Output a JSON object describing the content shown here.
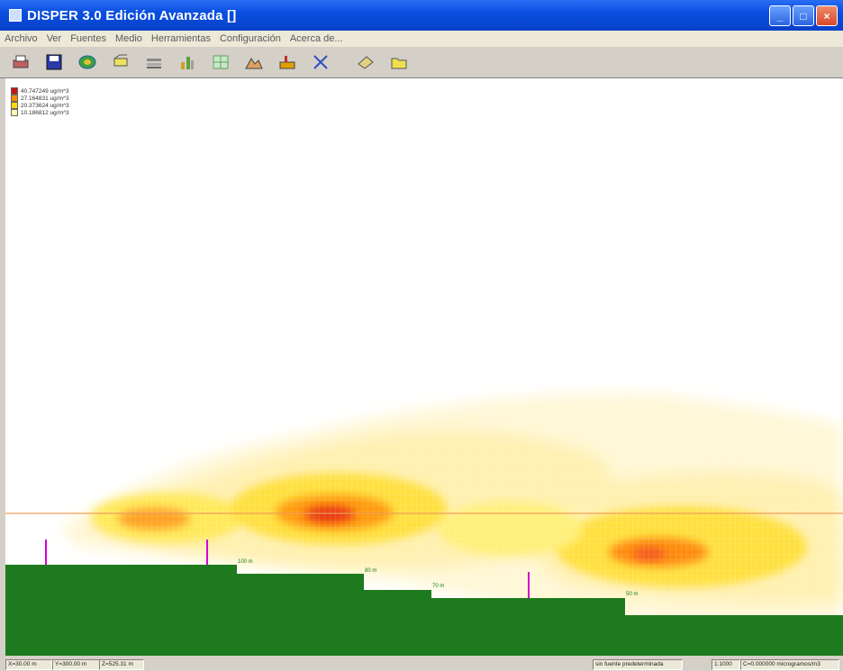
{
  "window": {
    "title": "DISPER 3.0 Edición Avanzada []",
    "controls": [
      "minimize",
      "maximize",
      "close"
    ]
  },
  "menu": {
    "items": [
      "Archivo",
      "Ver",
      "Fuentes",
      "Medio",
      "Herramientas",
      "Configuración",
      "Acerca de..."
    ]
  },
  "toolbar": {
    "icons": [
      "printer-icon",
      "save-disk-icon",
      "globe-icon",
      "stack-icon",
      "layers-icon",
      "chart-icon",
      "grid-icon",
      "terrain-icon",
      "factory-icon",
      "cross-icon",
      "pointer-icon",
      "folder-icon"
    ]
  },
  "legend": {
    "entries": [
      {
        "label": "40.747249 ug/m^3",
        "color": "#c81414"
      },
      {
        "label": "27.164831 ug/m^3",
        "color": "#ff8a00"
      },
      {
        "label": "20.373624 ug/m^3",
        "color": "#ffd800"
      },
      {
        "label": "10.186812 ug/m^3",
        "color": "#fff8b0"
      }
    ]
  },
  "terrain_labels": [
    "100 m",
    "80 m",
    "70 m",
    "50 m"
  ],
  "status": {
    "x": "X=30.00 m",
    "y": "Y=300.00 m",
    "z": "Z=525.31 m",
    "source": "sin fuente predeterminada",
    "scale": "1:1000",
    "concentration": "C=0.000000 microgramos/m3"
  },
  "colors": {
    "terrain": "#1e7a1e",
    "stack": "#d400d4",
    "titlebar": "#0a4fe0"
  }
}
